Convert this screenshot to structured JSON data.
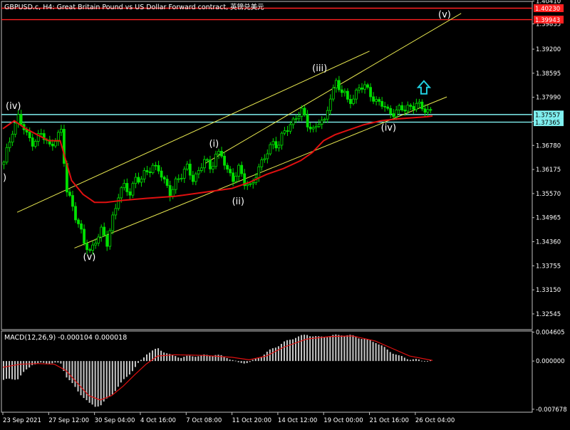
{
  "header": {
    "title": "GBPUSD.c, H4:  Great Britain Pound vs US Dollar Forward contract, 英镑兑美元"
  },
  "colors": {
    "background": "#000000",
    "frame": "#c0c0c0",
    "candle": "#00e000",
    "moving_average": "#e01010",
    "channel": "#e8e850",
    "level_red": "#ff2020",
    "level_cyan": "#80f0f0",
    "macd_hist": "#c8c8c8",
    "macd_signal": "#e01010",
    "arrow": "#20d0e0",
    "wave_label": "#ffffff"
  },
  "chart_data": [
    {
      "type": "candlestick",
      "name": "price-chart",
      "ylim": [
        1.3215,
        1.404
      ],
      "yticks": [
        "1.40410",
        "1.39835",
        "1.39200",
        "1.38595",
        "1.37990",
        "1.37385",
        "1.36780",
        "1.36175",
        "1.35570",
        "1.34965",
        "1.34360",
        "1.33755",
        "1.33150",
        "1.32545"
      ],
      "xticks": [
        "23 Sep 2021",
        "27 Sep 12:00",
        "30 Sep 04:00",
        "4 Oct 16:00",
        "7 Oct 08:00",
        "11 Oct 20:00",
        "14 Oct 12:00",
        "19 Oct 00:00",
        "21 Oct 16:00",
        "26 Oct 04:00"
      ],
      "xtick_bars": [
        0,
        16,
        32,
        48,
        64,
        80,
        96,
        112,
        128,
        144
      ],
      "bars_total": 150,
      "close_path": [
        [
          0,
          1.363
        ],
        [
          3,
          1.372
        ],
        [
          5,
          1.375
        ],
        [
          8,
          1.37
        ],
        [
          10,
          1.369
        ],
        [
          13,
          1.3705
        ],
        [
          16,
          1.3675
        ],
        [
          18,
          1.37
        ],
        [
          20,
          1.371
        ],
        [
          22,
          1.356
        ],
        [
          24,
          1.353
        ],
        [
          26,
          1.348
        ],
        [
          28,
          1.343
        ],
        [
          30,
          1.341
        ],
        [
          32,
          1.3445
        ],
        [
          34,
          1.346
        ],
        [
          36,
          1.343
        ],
        [
          38,
          1.35
        ],
        [
          40,
          1.3555
        ],
        [
          42,
          1.357
        ],
        [
          44,
          1.356
        ],
        [
          46,
          1.36
        ],
        [
          48,
          1.359
        ],
        [
          50,
          1.361
        ],
        [
          52,
          1.363
        ],
        [
          54,
          1.362
        ],
        [
          56,
          1.358
        ],
        [
          58,
          1.356
        ],
        [
          60,
          1.359
        ],
        [
          62,
          1.36
        ],
        [
          64,
          1.362
        ],
        [
          66,
          1.36
        ],
        [
          68,
          1.361
        ],
        [
          70,
          1.364
        ],
        [
          72,
          1.362
        ],
        [
          74,
          1.366
        ],
        [
          76,
          1.365
        ],
        [
          78,
          1.361
        ],
        [
          80,
          1.36
        ],
        [
          82,
          1.362
        ],
        [
          84,
          1.358
        ],
        [
          86,
          1.3575
        ],
        [
          88,
          1.361
        ],
        [
          90,
          1.363
        ],
        [
          92,
          1.366
        ],
        [
          94,
          1.369
        ],
        [
          96,
          1.368
        ],
        [
          98,
          1.371
        ],
        [
          100,
          1.373
        ],
        [
          102,
          1.3755
        ],
        [
          104,
          1.376
        ],
        [
          106,
          1.373
        ],
        [
          108,
          1.372
        ],
        [
          110,
          1.374
        ],
        [
          112,
          1.373
        ],
        [
          114,
          1.3805
        ],
        [
          116,
          1.384
        ],
        [
          118,
          1.381
        ],
        [
          120,
          1.379
        ],
        [
          122,
          1.38
        ],
        [
          124,
          1.3825
        ],
        [
          126,
          1.382
        ],
        [
          128,
          1.381
        ],
        [
          130,
          1.379
        ],
        [
          132,
          1.378
        ],
        [
          134,
          1.376
        ],
        [
          136,
          1.3765
        ],
        [
          138,
          1.377
        ],
        [
          140,
          1.3765
        ],
        [
          142,
          1.3775
        ],
        [
          144,
          1.379
        ],
        [
          146,
          1.3765
        ],
        [
          148,
          1.3764
        ],
        [
          150,
          1.376
        ]
      ],
      "moving_average": [
        [
          0,
          1.372
        ],
        [
          4,
          1.374
        ],
        [
          8,
          1.372
        ],
        [
          12,
          1.3705
        ],
        [
          16,
          1.369
        ],
        [
          20,
          1.369
        ],
        [
          22,
          1.364
        ],
        [
          24,
          1.359
        ],
        [
          28,
          1.3555
        ],
        [
          32,
          1.3535
        ],
        [
          36,
          1.3535
        ],
        [
          42,
          1.354
        ],
        [
          50,
          1.3545
        ],
        [
          60,
          1.355
        ],
        [
          70,
          1.356
        ],
        [
          80,
          1.357
        ],
        [
          86,
          1.3585
        ],
        [
          92,
          1.3605
        ],
        [
          98,
          1.362
        ],
        [
          104,
          1.364
        ],
        [
          108,
          1.366
        ],
        [
          112,
          1.369
        ],
        [
          116,
          1.3705
        ],
        [
          120,
          1.3715
        ],
        [
          126,
          1.373
        ],
        [
          132,
          1.374
        ],
        [
          138,
          1.3745
        ],
        [
          144,
          1.3748
        ],
        [
          148,
          1.375
        ],
        [
          150,
          1.3752
        ]
      ],
      "channels": [
        {
          "from": [
            25,
            1.342
          ],
          "to": [
            155,
            1.38
          ]
        },
        {
          "from": [
            5,
            1.351
          ],
          "to": [
            128,
            1.3915
          ]
        },
        {
          "from": [
            70,
            1.363
          ],
          "to": [
            160,
            1.401
          ]
        }
      ],
      "levels": [
        {
          "value": 1.4023,
          "label": "1.40230",
          "color": "red"
        },
        {
          "value": 1.39943,
          "label": "1.39943",
          "color": "red"
        },
        {
          "value": 1.37557,
          "label": "1.37557",
          "color": "cyan"
        },
        {
          "value": 1.37365,
          "label": "1.37365",
          "color": "cyan"
        }
      ],
      "wave_labels": [
        {
          "text": "(iv)",
          "bar": 1,
          "value": 1.377
        },
        {
          "text": ")",
          "bar": 0,
          "value": 1.359
        },
        {
          "text": "(v)",
          "bar": 28,
          "value": 1.339
        },
        {
          "text": "(i)",
          "bar": 72,
          "value": 1.3675
        },
        {
          "text": "(ii)",
          "bar": 80,
          "value": 1.353
        },
        {
          "text": "(iii)",
          "bar": 108,
          "value": 1.3865
        },
        {
          "text": "(iv)",
          "bar": 132,
          "value": 1.3715
        },
        {
          "text": "(v)",
          "bar": 152,
          "value": 1.4
        }
      ],
      "arrow": {
        "bar": 147,
        "value": 1.384,
        "direction": "up"
      }
    },
    {
      "type": "histogram",
      "name": "macd-panel",
      "title": "MACD(12,26,9) -0.000104 0.000018",
      "ylim": [
        -0.00815,
        0.00478
      ],
      "yticks": [
        "0.004605",
        "0.000000",
        "-0.007678"
      ],
      "hist_path": [
        [
          0,
          -0.003
        ],
        [
          5,
          -0.0028
        ],
        [
          10,
          -0.0005
        ],
        [
          15,
          -0.0003
        ],
        [
          20,
          -0.0004
        ],
        [
          22,
          -0.0025
        ],
        [
          26,
          -0.0048
        ],
        [
          30,
          -0.0068
        ],
        [
          32,
          -0.0072
        ],
        [
          34,
          -0.007
        ],
        [
          38,
          -0.0052
        ],
        [
          42,
          -0.003
        ],
        [
          46,
          -0.001
        ],
        [
          50,
          0.0012
        ],
        [
          54,
          0.002
        ],
        [
          58,
          0.001
        ],
        [
          62,
          0.0006
        ],
        [
          66,
          0.0008
        ],
        [
          70,
          0.0009
        ],
        [
          74,
          0.001
        ],
        [
          78,
          0.0006
        ],
        [
          82,
          -0.0003
        ],
        [
          86,
          -0.0002
        ],
        [
          90,
          0.0008
        ],
        [
          94,
          0.002
        ],
        [
          98,
          0.003
        ],
        [
          102,
          0.0038
        ],
        [
          106,
          0.0042
        ],
        [
          110,
          0.0038
        ],
        [
          114,
          0.004
        ],
        [
          118,
          0.0042
        ],
        [
          122,
          0.004
        ],
        [
          126,
          0.0035
        ],
        [
          130,
          0.003
        ],
        [
          134,
          0.0018
        ],
        [
          138,
          0.0008
        ],
        [
          142,
          0.0003
        ],
        [
          146,
          0.0001
        ],
        [
          150,
          0.0
        ]
      ],
      "signal_path": [
        [
          0,
          -0.001
        ],
        [
          6,
          -0.0005
        ],
        [
          12,
          -0.0004
        ],
        [
          18,
          -0.0005
        ],
        [
          22,
          -0.0015
        ],
        [
          26,
          -0.0035
        ],
        [
          30,
          -0.0055
        ],
        [
          34,
          -0.0062
        ],
        [
          38,
          -0.0055
        ],
        [
          42,
          -0.004
        ],
        [
          46,
          -0.0022
        ],
        [
          50,
          -0.0005
        ],
        [
          54,
          0.0008
        ],
        [
          60,
          0.001
        ],
        [
          70,
          0.0009
        ],
        [
          80,
          0.0006
        ],
        [
          86,
          0.0002
        ],
        [
          92,
          0.0008
        ],
        [
          98,
          0.0022
        ],
        [
          106,
          0.0035
        ],
        [
          114,
          0.0039
        ],
        [
          122,
          0.004
        ],
        [
          130,
          0.0032
        ],
        [
          136,
          0.002
        ],
        [
          142,
          0.0008
        ],
        [
          150,
          0.0001
        ]
      ]
    }
  ]
}
